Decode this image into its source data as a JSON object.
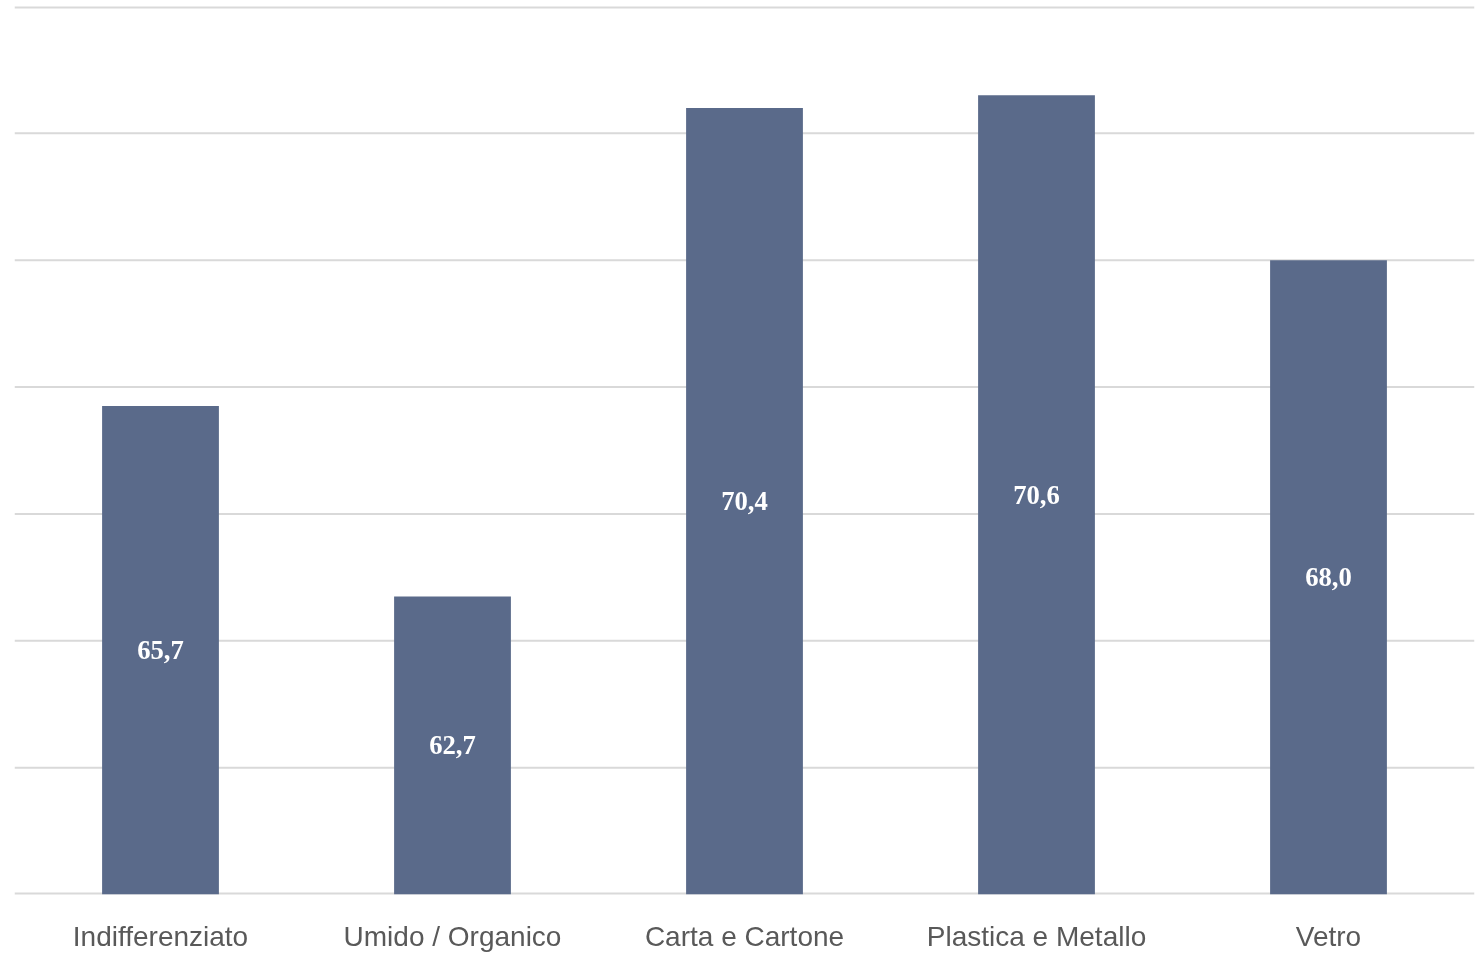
{
  "chart_data": {
    "type": "bar",
    "categories": [
      "Indifferenziato",
      "Umido / Organico",
      "Carta e Cartone",
      "Plastica e Metallo",
      "Vetro"
    ],
    "values": [
      65.7,
      62.7,
      70.4,
      70.6,
      68.0
    ],
    "value_labels": [
      "65,7",
      "62,7",
      "70,4",
      "70,6",
      "68,0"
    ],
    "color": "#5a6a8a",
    "ylim": [
      58,
      72
    ],
    "yticks": [
      {
        "value": 58,
        "label": null
      },
      {
        "value": 60,
        "label": null
      },
      {
        "value": 62,
        "label": null
      },
      {
        "value": 64,
        "label": null
      },
      {
        "value": 66,
        "label": null
      },
      {
        "value": 68,
        "label": null
      },
      {
        "value": 70,
        "label": null
      },
      {
        "value": 72,
        "label": null
      }
    ],
    "grid": "y",
    "tick_labels": "x"
  }
}
